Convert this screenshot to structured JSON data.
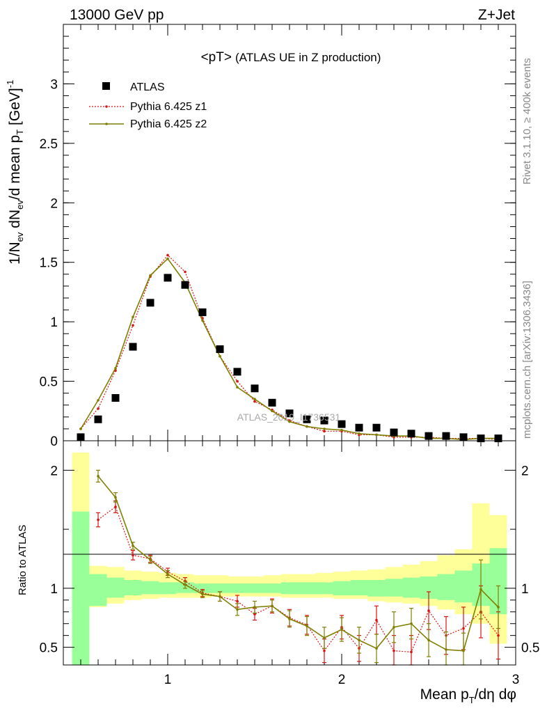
{
  "header": {
    "left": "13000 GeV pp",
    "right": "Z+Jet"
  },
  "plot_title": {
    "main": "<pT>",
    "suffix": "(ATLAS UE in Z production)"
  },
  "watermark": "ATLAS_2019_I1736531",
  "side_text": {
    "rivet": "Rivet 3.1.10, ≥ 400k events",
    "mcplots": "mcplots.cern.ch [arXiv:1306.3436]"
  },
  "axis_labels": {
    "y_main": {
      "a": "1/N",
      "b": "ev",
      "c": " dN",
      "d": "ev",
      "e": "/d mean p",
      "f": "T",
      "g": " [GeV]",
      "h": "-1"
    },
    "y_ratio": "Ratio to ATLAS",
    "x": {
      "a": "Mean p",
      "b": "T",
      "c": "/dη dφ"
    }
  },
  "colors": {
    "atlas": "#000000",
    "z1": "#dd1111",
    "z2": "#7f7f00",
    "band_inner": "#99ff99",
    "band_outer": "#ffff99"
  },
  "chart_data": [
    {
      "type": "scatter",
      "panel": "main",
      "xlim": [
        0.4,
        3.0
      ],
      "ylim": [
        0,
        3.5
      ],
      "xticks": [
        1,
        2,
        3
      ],
      "yticks": [
        0,
        0.5,
        1,
        1.5,
        2,
        2.5,
        3
      ],
      "ytick_labels": [
        "0",
        "0.5",
        "1",
        "1.5",
        "2",
        "2.5",
        "3"
      ],
      "x": [
        0.5,
        0.6,
        0.7,
        0.8,
        0.9,
        1.0,
        1.1,
        1.2,
        1.3,
        1.4,
        1.5,
        1.6,
        1.7,
        1.8,
        1.9,
        2.0,
        2.1,
        2.2,
        2.3,
        2.4,
        2.5,
        2.6,
        2.7,
        2.8,
        2.9
      ],
      "series": [
        {
          "name": "ATLAS",
          "style": "markers",
          "values": [
            0.03,
            0.18,
            0.36,
            0.79,
            1.16,
            1.37,
            1.31,
            1.08,
            0.77,
            0.58,
            0.44,
            0.32,
            0.23,
            0.18,
            0.17,
            0.14,
            0.11,
            0.11,
            0.07,
            0.06,
            0.04,
            0.04,
            0.03,
            0.02,
            0.02
          ]
        },
        {
          "name": "Pythia 6.425 z1",
          "style": "dotted",
          "values": [
            0.1,
            0.27,
            0.59,
            0.97,
            1.38,
            1.56,
            1.42,
            1.03,
            0.71,
            0.5,
            0.33,
            0.26,
            0.17,
            0.12,
            0.08,
            0.08,
            0.05,
            0.05,
            0.03,
            0.03,
            0.03,
            0.02,
            0.02,
            0.02,
            0.01
          ]
        },
        {
          "name": "Pythia 6.425 z2",
          "style": "solid",
          "values": [
            0.1,
            0.34,
            0.61,
            1.04,
            1.39,
            1.53,
            1.33,
            1.01,
            0.71,
            0.45,
            0.35,
            0.25,
            0.16,
            0.12,
            0.1,
            0.09,
            0.06,
            0.05,
            0.04,
            0.04,
            0.02,
            0.02,
            0.01,
            0.02,
            0.02
          ]
        }
      ]
    },
    {
      "type": "line",
      "panel": "ratio",
      "xlim": [
        0.4,
        3.0
      ],
      "ylim": [
        0.35,
        2.25
      ],
      "xticks": [
        1,
        2,
        3
      ],
      "xtick_labels": [
        "1",
        "2",
        "3"
      ],
      "yticks": [
        0.5,
        1,
        2
      ],
      "ytick_labels": [
        "0.5",
        "1",
        "2"
      ],
      "x": [
        0.6,
        0.7,
        0.8,
        0.9,
        1.0,
        1.1,
        1.2,
        1.3,
        1.4,
        1.5,
        1.6,
        1.7,
        1.8,
        1.9,
        2.0,
        2.1,
        2.2,
        2.3,
        2.4,
        2.5,
        2.6,
        2.7,
        2.8,
        2.9
      ],
      "series": [
        {
          "name": "Pythia 6.425 z1",
          "style": "dotted",
          "values": [
            1.58,
            1.69,
            1.28,
            1.25,
            1.14,
            1.06,
            0.96,
            0.93,
            0.89,
            0.78,
            0.85,
            0.75,
            0.69,
            0.47,
            0.67,
            0.49,
            0.73,
            0.47,
            0.46,
            0.81,
            0.6,
            0.66,
            0.8,
            0.6
          ],
          "errors": [
            0.06,
            0.05,
            0.04,
            0.03,
            0.03,
            0.03,
            0.03,
            0.04,
            0.05,
            0.05,
            0.06,
            0.07,
            0.08,
            0.1,
            0.1,
            0.11,
            0.12,
            0.13,
            0.14,
            0.16,
            0.16,
            0.18,
            0.22,
            0.2
          ]
        },
        {
          "name": "Pythia 6.425 z2",
          "style": "solid",
          "values": [
            1.95,
            1.77,
            1.36,
            1.24,
            1.12,
            1.03,
            0.95,
            0.93,
            0.82,
            0.84,
            0.85,
            0.74,
            0.68,
            0.58,
            0.65,
            0.56,
            0.49,
            0.67,
            0.7,
            0.56,
            0.48,
            0.47,
            0.99,
            0.84
          ],
          "errors": [
            0.05,
            0.04,
            0.03,
            0.03,
            0.03,
            0.03,
            0.03,
            0.04,
            0.05,
            0.05,
            0.05,
            0.07,
            0.08,
            0.09,
            0.1,
            0.11,
            0.12,
            0.13,
            0.13,
            0.14,
            0.15,
            0.15,
            0.25,
            0.18
          ]
        }
      ],
      "uncertainty_bands": {
        "bin_edges": [
          0.45,
          0.55,
          0.65,
          0.75,
          0.85,
          0.95,
          1.05,
          1.15,
          1.25,
          1.35,
          1.45,
          1.55,
          1.65,
          1.75,
          1.85,
          1.95,
          2.05,
          2.15,
          2.25,
          2.35,
          2.45,
          2.55,
          2.65,
          2.75,
          2.85,
          2.95
        ],
        "inner": [
          [
            0.35,
            1.65
          ],
          [
            0.85,
            1.12
          ],
          [
            0.92,
            1.09
          ],
          [
            0.94,
            1.07
          ],
          [
            0.95,
            1.06
          ],
          [
            0.95,
            1.05
          ],
          [
            0.96,
            1.05
          ],
          [
            0.96,
            1.04
          ],
          [
            0.96,
            1.04
          ],
          [
            0.96,
            1.04
          ],
          [
            0.96,
            1.04
          ],
          [
            0.96,
            1.04
          ],
          [
            0.95,
            1.05
          ],
          [
            0.95,
            1.05
          ],
          [
            0.95,
            1.05
          ],
          [
            0.94,
            1.06
          ],
          [
            0.94,
            1.07
          ],
          [
            0.93,
            1.07
          ],
          [
            0.93,
            1.08
          ],
          [
            0.92,
            1.09
          ],
          [
            0.91,
            1.1
          ],
          [
            0.9,
            1.12
          ],
          [
            0.88,
            1.15
          ],
          [
            0.85,
            1.21
          ],
          [
            0.78,
            1.34
          ]
        ],
        "outer": [
          [
            0.35,
            2.15
          ],
          [
            0.84,
            1.19
          ],
          [
            0.87,
            1.18
          ],
          [
            0.9,
            1.15
          ],
          [
            0.91,
            1.14
          ],
          [
            0.92,
            1.13
          ],
          [
            0.92,
            1.12
          ],
          [
            0.92,
            1.11
          ],
          [
            0.93,
            1.11
          ],
          [
            0.93,
            1.1
          ],
          [
            0.93,
            1.1
          ],
          [
            0.93,
            1.11
          ],
          [
            0.92,
            1.12
          ],
          [
            0.92,
            1.12
          ],
          [
            0.92,
            1.13
          ],
          [
            0.91,
            1.14
          ],
          [
            0.91,
            1.15
          ],
          [
            0.89,
            1.16
          ],
          [
            0.88,
            1.18
          ],
          [
            0.87,
            1.2
          ],
          [
            0.85,
            1.23
          ],
          [
            0.82,
            1.28
          ],
          [
            0.78,
            1.33
          ],
          [
            0.7,
            1.72
          ],
          [
            0.53,
            1.62
          ]
        ]
      }
    }
  ]
}
